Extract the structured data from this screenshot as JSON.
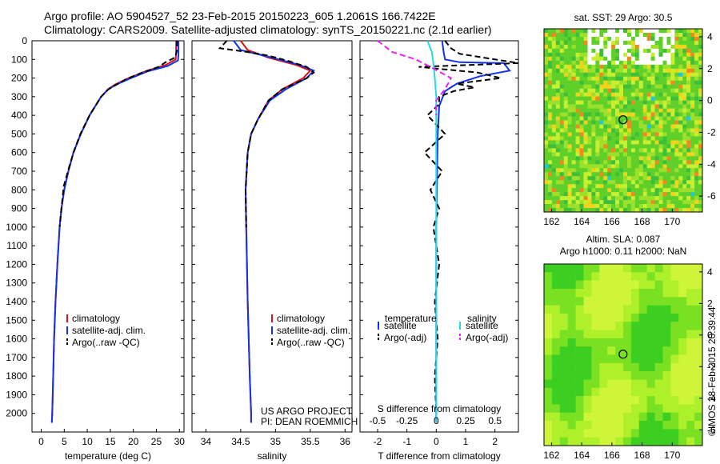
{
  "header": {
    "line1": "Argo profile: AO 5904527_52 23-Feb-2015 20150223_605 1.2061S 166.7422E",
    "line2": "Climatology: CARS2009. Satellite-adjusted climatology: synTS_20150221.nc (2.1d earlier)"
  },
  "colors": {
    "climatology": "#dd1111",
    "satellite": "#1133ee",
    "argo": "#000000",
    "sal_satellite": "#22dddd",
    "sal_argo": "#ee22ee"
  },
  "chart_data": [
    {
      "type": "line",
      "id": "temperature",
      "xlabel": "temperature (deg C)",
      "ylabel": "",
      "xlim": [
        -2,
        31
      ],
      "ylim": [
        2100,
        0
      ],
      "xticks": [
        0,
        5,
        10,
        15,
        20,
        25,
        30
      ],
      "yticks": [
        0,
        100,
        200,
        300,
        400,
        500,
        600,
        700,
        800,
        900,
        1000,
        1100,
        1200,
        1300,
        1400,
        1500,
        1600,
        1700,
        1800,
        1900,
        2000
      ],
      "legend": {
        "placement": "lower-center",
        "entries": [
          "climatology",
          "satellite-adj. clim.",
          "Argo(..raw -QC)"
        ]
      },
      "series": [
        {
          "name": "climatology",
          "color_key": "climatology",
          "points": [
            [
              29.3,
              0
            ],
            [
              29.3,
              60
            ],
            [
              29.2,
              100
            ],
            [
              27,
              130
            ],
            [
              23,
              160
            ],
            [
              19,
              200
            ],
            [
              16,
              235
            ],
            [
              14.5,
              260
            ],
            [
              13,
              300
            ],
            [
              10.5,
              400
            ],
            [
              8.6,
              500
            ],
            [
              7,
              600
            ],
            [
              5.9,
              700
            ],
            [
              5,
              800
            ],
            [
              4.4,
              900
            ],
            [
              4,
              1000
            ],
            [
              3.5,
              1200
            ],
            [
              3.1,
              1400
            ],
            [
              2.8,
              1600
            ],
            [
              2.6,
              1800
            ],
            [
              2.4,
              2000
            ],
            [
              2.3,
              2050
            ]
          ]
        },
        {
          "name": "satellite-adj. clim.",
          "color_key": "satellite",
          "points": [
            [
              29.8,
              0
            ],
            [
              29.8,
              70
            ],
            [
              29.7,
              105
            ],
            [
              27.5,
              135
            ],
            [
              23,
              165
            ],
            [
              19.5,
              200
            ],
            [
              16.3,
              235
            ],
            [
              14.5,
              262
            ],
            [
              13,
              300
            ],
            [
              10.5,
              400
            ],
            [
              8.6,
              500
            ],
            [
              7,
              600
            ],
            [
              5.9,
              700
            ],
            [
              5,
              800
            ],
            [
              4.4,
              900
            ],
            [
              4,
              1000
            ],
            [
              3.5,
              1200
            ],
            [
              3.1,
              1400
            ],
            [
              2.8,
              1600
            ],
            [
              2.6,
              1800
            ],
            [
              2.4,
              2000
            ],
            [
              2.3,
              2050
            ]
          ]
        },
        {
          "name": "Argo(..raw -QC)",
          "color_key": "argo",
          "dashed": true,
          "points": [
            [
              29.5,
              0
            ],
            [
              29.4,
              60
            ],
            [
              29,
              90
            ],
            [
              27,
              115
            ],
            [
              25.5,
              140
            ],
            [
              22,
              170
            ],
            [
              18.5,
              205
            ],
            [
              16,
              240
            ],
            [
              14.5,
              262
            ],
            [
              13,
              300
            ],
            [
              10.5,
              400
            ],
            [
              8.5,
              500
            ],
            [
              7,
              600
            ],
            [
              5.8,
              700
            ],
            [
              4.9,
              780
            ],
            [
              4.4,
              900
            ],
            [
              4,
              1000
            ]
          ]
        }
      ]
    },
    {
      "type": "line",
      "id": "salinity",
      "xlabel": "salinity",
      "ylabel": "",
      "xlim": [
        33.8,
        36.1
      ],
      "ylim": [
        2100,
        0
      ],
      "xticks": [
        34,
        34.5,
        35,
        35.5,
        36
      ],
      "legend": {
        "placement": "lower-center",
        "entries": [
          "climatology",
          "satellite-adj. clim.",
          "Argo(..raw -QC)"
        ]
      },
      "annotation": [
        "US ARGO PROJECT",
        "PI: DEAN ROEMMICH"
      ],
      "series": [
        {
          "name": "climatology",
          "color_key": "climatology",
          "points": [
            [
              34.5,
              0
            ],
            [
              34.6,
              50
            ],
            [
              34.9,
              90
            ],
            [
              35.3,
              130
            ],
            [
              35.5,
              160
            ],
            [
              35.4,
              200
            ],
            [
              35.1,
              260
            ],
            [
              34.9,
              320
            ],
            [
              34.75,
              420
            ],
            [
              34.65,
              500
            ],
            [
              34.6,
              600
            ],
            [
              34.57,
              800
            ],
            [
              34.58,
              1000
            ],
            [
              34.6,
              1400
            ],
            [
              34.63,
              1800
            ],
            [
              34.65,
              2000
            ],
            [
              34.65,
              2050
            ]
          ]
        },
        {
          "name": "satellite-adj. clim.",
          "color_key": "satellite",
          "points": [
            [
              34.4,
              0
            ],
            [
              34.5,
              50
            ],
            [
              34.95,
              90
            ],
            [
              35.35,
              130
            ],
            [
              35.55,
              160
            ],
            [
              35.45,
              200
            ],
            [
              35.15,
              260
            ],
            [
              34.92,
              320
            ],
            [
              34.75,
              420
            ],
            [
              34.65,
              500
            ],
            [
              34.6,
              600
            ],
            [
              34.57,
              800
            ],
            [
              34.58,
              1000
            ],
            [
              34.6,
              1400
            ],
            [
              34.63,
              1800
            ],
            [
              34.65,
              2000
            ],
            [
              34.65,
              2050
            ]
          ]
        },
        {
          "name": "Argo(..raw -QC)",
          "color_key": "argo",
          "dashed": true,
          "points": [
            [
              34.3,
              0
            ],
            [
              34.2,
              40
            ],
            [
              34.6,
              60
            ],
            [
              34.9,
              80
            ],
            [
              35.2,
              110
            ],
            [
              35.45,
              140
            ],
            [
              35.55,
              170
            ],
            [
              35.45,
              200
            ],
            [
              35.1,
              260
            ],
            [
              34.9,
              320
            ],
            [
              34.75,
              420
            ],
            [
              34.65,
              500
            ],
            [
              34.6,
              600
            ],
            [
              34.57,
              800
            ],
            [
              34.58,
              1000
            ]
          ]
        }
      ]
    },
    {
      "type": "line",
      "id": "differences",
      "xlabel": "T difference from climatology",
      "xlabel_top": "S difference from climatology",
      "ylabel": "",
      "xlim": [
        -2.6,
        2.8
      ],
      "ylim": [
        2100,
        0
      ],
      "xticks": [
        -2,
        -1,
        0,
        1,
        2
      ],
      "sticks": [
        "-0.5",
        "-0.25",
        "0",
        "0.25",
        "0.5"
      ],
      "legend": {
        "placement": "lower-center",
        "headers": [
          "temperature",
          "salinity"
        ],
        "entries": [
          "satellite",
          "Argo(-adj)",
          "satellite",
          "Argo(-adj)"
        ]
      },
      "series": [
        {
          "name": "satellite",
          "color_key": "satellite",
          "kind": "temperature",
          "points": [
            [
              0.2,
              0
            ],
            [
              0.25,
              60
            ],
            [
              0.3,
              100
            ],
            [
              0.8,
              115
            ],
            [
              2.3,
              120
            ],
            [
              2.5,
              160
            ],
            [
              1.5,
              190
            ],
            [
              0.7,
              230
            ],
            [
              0.3,
              270
            ],
            [
              0.1,
              350
            ],
            [
              0.05,
              500
            ],
            [
              0,
              1000
            ],
            [
              0,
              2050
            ]
          ]
        },
        {
          "name": "Argo(-adj)",
          "color_key": "argo",
          "kind": "temperature",
          "dashed": true,
          "points": [
            [
              0.3,
              0
            ],
            [
              0.5,
              40
            ],
            [
              0.8,
              70
            ],
            [
              2.8,
              120
            ],
            [
              -0.6,
              140
            ],
            [
              1.4,
              170
            ],
            [
              2.2,
              200
            ],
            [
              0.7,
              230
            ],
            [
              1.3,
              250
            ],
            [
              0.6,
              270
            ],
            [
              0.1,
              300
            ],
            [
              0.1,
              340
            ],
            [
              -0.3,
              400
            ],
            [
              0.3,
              500
            ],
            [
              -0.4,
              600
            ],
            [
              0.2,
              700
            ],
            [
              -0.2,
              800
            ],
            [
              0.1,
              900
            ],
            [
              -0.1,
              1000
            ],
            [
              0.1,
              1200
            ],
            [
              -0.05,
              1400
            ],
            [
              0.05,
              1600
            ],
            [
              -0.05,
              1800
            ],
            [
              0,
              2000
            ]
          ]
        },
        {
          "name": "satellite",
          "color_key": "sal_satellite",
          "kind": "salinity",
          "points": [
            [
              -0.3,
              0
            ],
            [
              -0.15,
              60
            ],
            [
              -0.1,
              120
            ],
            [
              -0.05,
              200
            ],
            [
              0,
              300
            ],
            [
              0,
              500
            ],
            [
              0,
              1000
            ],
            [
              0,
              2050
            ]
          ]
        },
        {
          "name": "Argo(-adj)",
          "color_key": "sal_argo",
          "kind": "salinity",
          "dashed": true,
          "points": [
            [
              -2.0,
              0
            ],
            [
              -1.5,
              60
            ],
            [
              -0.7,
              100
            ],
            [
              -0.2,
              140
            ],
            [
              0.5,
              200
            ],
            [
              0.3,
              260
            ],
            [
              0,
              320
            ],
            [
              0,
              400
            ]
          ]
        }
      ]
    },
    {
      "type": "heatmap",
      "id": "sst-map",
      "title": "sat. SST: 29 Argo: 30.5",
      "xlim": [
        161.5,
        172
      ],
      "ylim": [
        -7,
        4.5
      ],
      "xticks": [
        162,
        164,
        166,
        168,
        170
      ],
      "yticks": [
        -6,
        -4,
        -2,
        0,
        2,
        4
      ],
      "float_position": [
        166.74,
        -1.21
      ]
    },
    {
      "type": "heatmap",
      "id": "sla-map",
      "title_lines": [
        "Altim. SLA: 0.087",
        "Argo h1000: 0.11 h2000: NaN"
      ],
      "xlim": [
        161.5,
        172
      ],
      "ylim": [
        -7,
        4.5
      ],
      "xticks": [
        162,
        164,
        166,
        168,
        170
      ],
      "yticks": [
        -6,
        -4,
        -2,
        0,
        2,
        4
      ],
      "float_position": [
        166.74,
        -1.21
      ]
    }
  ],
  "side_stamp": "©IMOS 28-Feb-2015 20:39:44"
}
